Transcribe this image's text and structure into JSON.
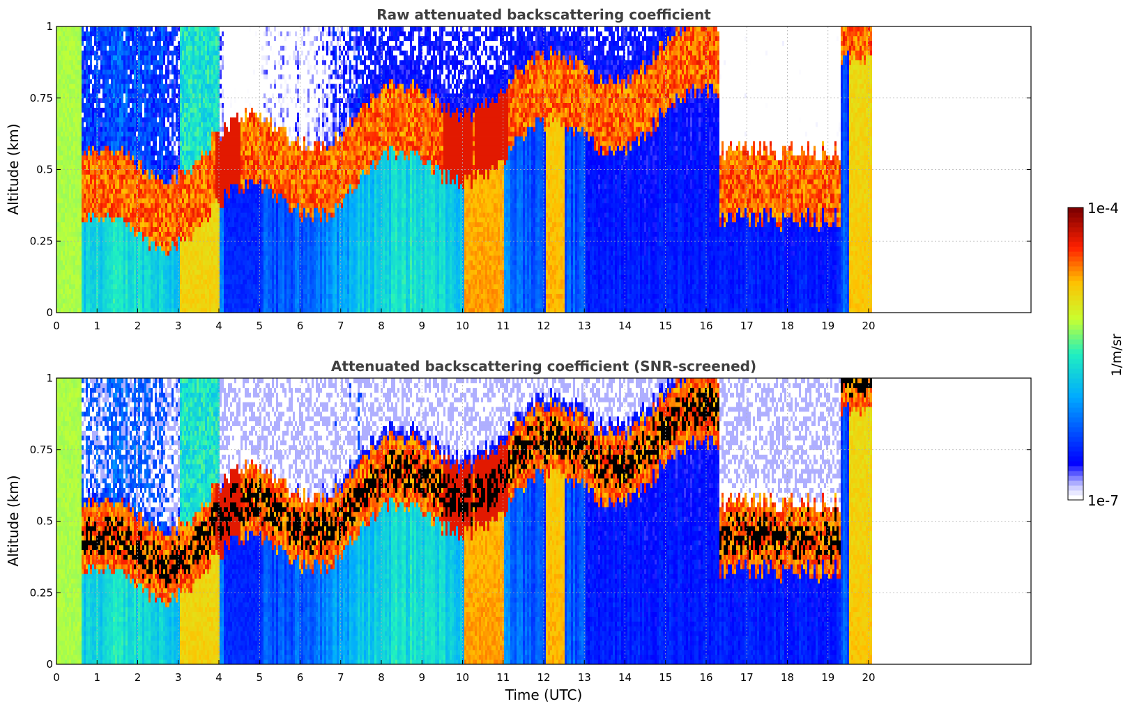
{
  "chart_data": [
    {
      "type": "heatmap",
      "title": "Raw attenuated backscattering coefficient",
      "xlabel": "",
      "ylabel": "Altitude (km)",
      "xlim": [
        0,
        24
      ],
      "ylim": [
        0,
        1
      ],
      "xticks": [
        "0",
        "1",
        "2",
        "3",
        "4",
        "5",
        "6",
        "7",
        "8",
        "9",
        "10",
        "11",
        "12",
        "13",
        "14",
        "15",
        "16",
        "17",
        "18",
        "19",
        "20"
      ],
      "yticks": [
        "0",
        "0.25",
        "0.5",
        "0.75",
        "1"
      ],
      "grid": true,
      "data_extent_hours": [
        0,
        20.1
      ],
      "screened": false,
      "description_of_values": "log10 attenuated backscatter; aerosol/cloud layer 0.25-0.75 km with strong returns, near-surface values moderate"
    },
    {
      "type": "heatmap",
      "title": "Attenuated backscattering coefficient (SNR-screened)",
      "xlabel": "Time (UTC)",
      "ylabel": "Altitude (km)",
      "xlim": [
        0,
        24
      ],
      "ylim": [
        0,
        1
      ],
      "xticks": [
        "0",
        "1",
        "2",
        "3",
        "4",
        "5",
        "6",
        "7",
        "8",
        "9",
        "10",
        "11",
        "12",
        "13",
        "14",
        "15",
        "16",
        "17",
        "18",
        "19",
        "20"
      ],
      "yticks": [
        "0",
        "0.25",
        "0.5",
        "0.75",
        "1"
      ],
      "grid": true,
      "data_extent_hours": [
        0,
        20.1
      ],
      "screened": true
    }
  ],
  "colorbar": {
    "label": "1/m/sr",
    "max_label": "1e-4",
    "min_label": "1e-7",
    "colormap": "jet",
    "range_log10": [
      -7,
      -4
    ]
  },
  "colors": {
    "axes": "#000000",
    "grid": "#b0b0b0",
    "title": "#404040"
  }
}
